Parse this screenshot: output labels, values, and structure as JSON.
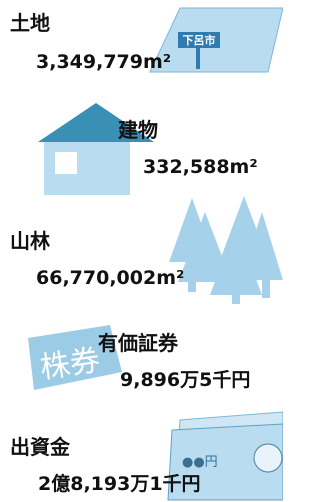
{
  "items": [
    {
      "label": "土地",
      "value": "3,349,779m²",
      "sign": "下呂市"
    },
    {
      "label": "建物",
      "value": "332,588m²"
    },
    {
      "label": "山林",
      "value": "66,770,002m²"
    },
    {
      "label": "有価証券",
      "value": "9,896万5千円",
      "ticket": "株券"
    },
    {
      "label": "出資金",
      "value": "2億8,193万1千円",
      "bill": "●●円"
    }
  ]
}
